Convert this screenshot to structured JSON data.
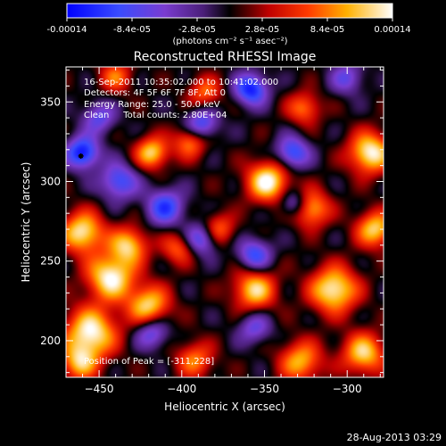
{
  "colorbar": {
    "tick_labels": [
      "-0.00014",
      "-8.4e-05",
      "-2.8e-05",
      "2.8e-05",
      "8.4e-05",
      "0.00014"
    ],
    "unit_label": "(photons cm⁻² s⁻¹ asec⁻²)",
    "range": [
      -0.00014,
      0.00014
    ],
    "stops": [
      {
        "v": 0.0,
        "color": "#0000ff"
      },
      {
        "v": 0.16,
        "color": "#3a4cff"
      },
      {
        "v": 0.3,
        "color": "#7a3cd0"
      },
      {
        "v": 0.42,
        "color": "#4a1e78"
      },
      {
        "v": 0.5,
        "color": "#000000"
      },
      {
        "v": 0.62,
        "color": "#c00000"
      },
      {
        "v": 0.74,
        "color": "#ff3a00"
      },
      {
        "v": 0.86,
        "color": "#ffb000"
      },
      {
        "v": 1.0,
        "color": "#ffffff"
      }
    ]
  },
  "chart_data": {
    "type": "heatmap",
    "title": "Reconstructed RHESSI Image",
    "xlabel": "Heliocentric X (arcsec)",
    "ylabel": "Heliocentric Y (arcsec)",
    "xlim": [
      -470,
      -278
    ],
    "ylim": [
      177,
      372
    ],
    "x_ticks": [
      -450,
      -400,
      -350,
      -300
    ],
    "y_ticks": [
      200,
      250,
      300,
      350
    ],
    "annotations": [
      "16-Sep-2011 10:35:02.000 to 10:41:02.000",
      "Detectors: 4F 5F 6F 7F 8F, Att 0",
      "Energy Range: 25.0 - 50.0 keV",
      "Clean     Total counts: 2.80E+04"
    ],
    "peak_label": "Position of Peak = [-311,228]",
    "peak_position": [
      -311,
      228
    ],
    "marker_position": [
      -461,
      316
    ],
    "sources": [
      {
        "x": -455,
        "y": 205,
        "a": 1.0,
        "s": 11
      },
      {
        "x": -443,
        "y": 240,
        "a": 1.0,
        "s": 10
      },
      {
        "x": -460,
        "y": 268,
        "a": 0.95,
        "s": 9
      },
      {
        "x": -432,
        "y": 260,
        "a": 0.8,
        "s": 8
      },
      {
        "x": -420,
        "y": 222,
        "a": 0.85,
        "s": 9
      },
      {
        "x": -418,
        "y": 318,
        "a": 0.85,
        "s": 7
      },
      {
        "x": -395,
        "y": 325,
        "a": 0.65,
        "s": 7
      },
      {
        "x": -402,
        "y": 258,
        "a": 0.55,
        "s": 7
      },
      {
        "x": -378,
        "y": 270,
        "a": 0.6,
        "s": 7
      },
      {
        "x": -348,
        "y": 300,
        "a": 1.0,
        "s": 9
      },
      {
        "x": -322,
        "y": 283,
        "a": 0.8,
        "s": 8
      },
      {
        "x": -356,
        "y": 232,
        "a": 0.85,
        "s": 9
      },
      {
        "x": -308,
        "y": 232,
        "a": 1.0,
        "s": 10
      },
      {
        "x": -286,
        "y": 318,
        "a": 1.0,
        "s": 9
      },
      {
        "x": -283,
        "y": 270,
        "a": 0.85,
        "s": 8
      },
      {
        "x": -290,
        "y": 192,
        "a": 0.85,
        "s": 9
      },
      {
        "x": -328,
        "y": 187,
        "a": 0.75,
        "s": 9
      },
      {
        "x": -392,
        "y": 188,
        "a": 0.6,
        "s": 8
      },
      {
        "x": -462,
        "y": 186,
        "a": 0.7,
        "s": 8
      },
      {
        "x": -386,
        "y": 356,
        "a": 0.55,
        "s": 7
      },
      {
        "x": -326,
        "y": 346,
        "a": 0.6,
        "s": 7
      },
      {
        "x": -440,
        "y": 366,
        "a": 0.55,
        "s": 7
      },
      {
        "x": -460,
        "y": 318,
        "a": -0.95,
        "s": 7
      },
      {
        "x": -438,
        "y": 300,
        "a": -0.7,
        "s": 8
      },
      {
        "x": -410,
        "y": 284,
        "a": -0.75,
        "s": 8
      },
      {
        "x": -388,
        "y": 264,
        "a": -0.7,
        "s": 7
      },
      {
        "x": -356,
        "y": 254,
        "a": -0.7,
        "s": 7
      },
      {
        "x": -388,
        "y": 336,
        "a": -0.7,
        "s": 7
      },
      {
        "x": -358,
        "y": 358,
        "a": -0.9,
        "s": 7
      },
      {
        "x": -333,
        "y": 318,
        "a": -0.75,
        "s": 7
      },
      {
        "x": -332,
        "y": 286,
        "a": -0.6,
        "s": 6
      },
      {
        "x": -418,
        "y": 205,
        "a": -0.6,
        "s": 7
      },
      {
        "x": -356,
        "y": 208,
        "a": -0.5,
        "s": 7
      },
      {
        "x": -450,
        "y": 340,
        "a": -0.55,
        "s": 7
      },
      {
        "x": -300,
        "y": 365,
        "a": -0.5,
        "s": 7
      }
    ]
  },
  "footer": {
    "timestamp": "28-Aug-2013 03:29"
  }
}
